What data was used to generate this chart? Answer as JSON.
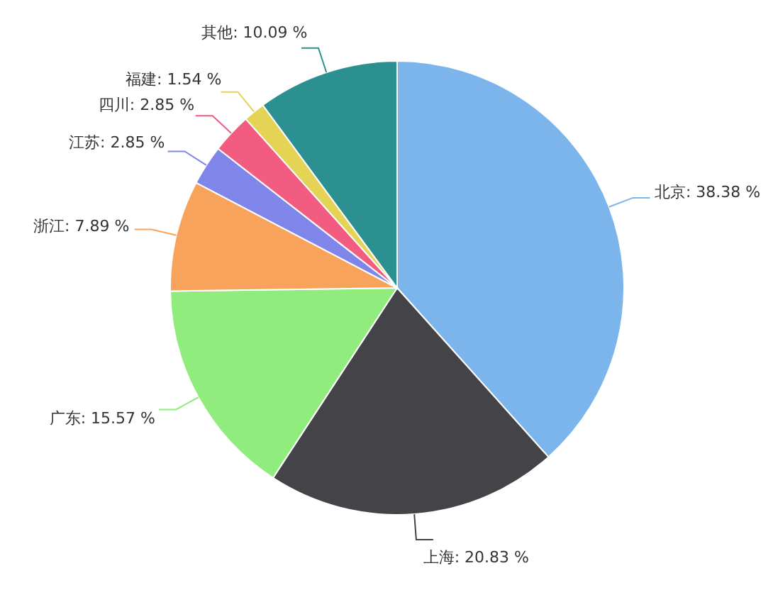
{
  "chart_data": {
    "type": "pie",
    "categories": [
      "北京",
      "上海",
      "广东",
      "浙江",
      "江苏",
      "四川",
      "福建",
      "其他"
    ],
    "values": [
      38.38,
      20.83,
      15.57,
      7.89,
      2.85,
      2.85,
      1.54,
      10.09
    ],
    "value_labels": [
      "38.38 %",
      "20.83 %",
      "15.57 %",
      "7.89 %",
      "2.85 %",
      "2.85 %",
      "1.54 %",
      "10.09 %"
    ],
    "colors": [
      "#7cb5ec",
      "#434348",
      "#90ed7d",
      "#f7a35c",
      "#8085e9",
      "#f15c80",
      "#e4d354",
      "#2b908f"
    ],
    "legend": false
  }
}
